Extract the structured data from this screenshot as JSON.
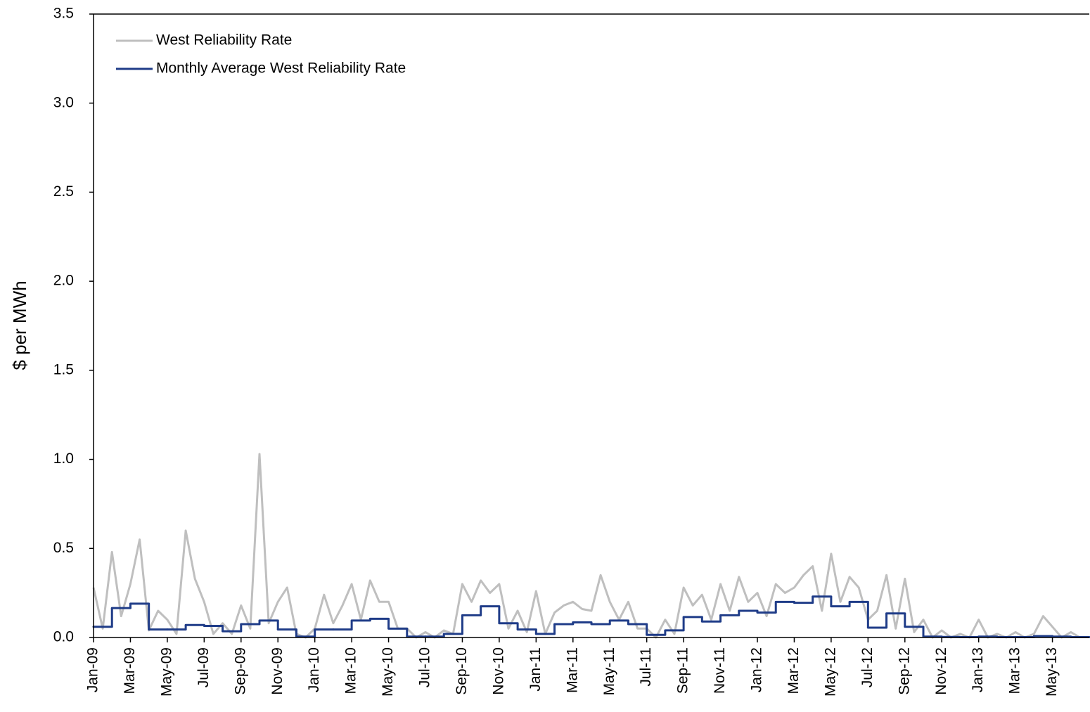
{
  "chart_data": {
    "type": "line",
    "y_label": "$ per MWh",
    "xlim": [
      0,
      54
    ],
    "ylim": [
      0,
      3.5
    ],
    "yticks": [
      {
        "value": 0,
        "label": "0.0"
      },
      0.5,
      {
        "value": 1,
        "label": "1.0"
      },
      1.5,
      {
        "value": 2,
        "label": "2.0"
      },
      2.5,
      {
        "value": 3,
        "label": "3.0"
      },
      3.5
    ],
    "xticks": [
      {
        "value": 0,
        "label": "Jan-09"
      },
      {
        "value": 2,
        "label": "Mar-09"
      },
      {
        "value": 4,
        "label": "May-09"
      },
      {
        "value": 6,
        "label": "Jul-09"
      },
      {
        "value": 8,
        "label": "Sep-09"
      },
      {
        "value": 10,
        "label": "Nov-09"
      },
      {
        "value": 12,
        "label": "Jan-10"
      },
      {
        "value": 14,
        "label": "Mar-10"
      },
      {
        "value": 16,
        "label": "May-10"
      },
      {
        "value": 18,
        "label": "Jul-10"
      },
      {
        "value": 20,
        "label": "Sep-10"
      },
      {
        "value": 22,
        "label": "Nov-10"
      },
      {
        "value": 24,
        "label": "Jan-11"
      },
      {
        "value": 26,
        "label": "Mar-11"
      },
      {
        "value": 28,
        "label": "May-11"
      },
      {
        "value": 30,
        "label": "Jul-11"
      },
      {
        "value": 32,
        "label": "Sep-11"
      },
      {
        "value": 34,
        "label": "Nov-11"
      },
      {
        "value": 36,
        "label": "Jan-12"
      },
      {
        "value": 38,
        "label": "Mar-12"
      },
      {
        "value": 40,
        "label": "May-12"
      },
      {
        "value": 42,
        "label": "Jul-12"
      },
      {
        "value": 44,
        "label": "Sep-12"
      },
      {
        "value": 46,
        "label": "Nov-12"
      },
      {
        "value": 48,
        "label": "Jan-13"
      },
      {
        "value": 50,
        "label": "Mar-13"
      },
      {
        "value": 52,
        "label": "May-13"
      }
    ],
    "legend": "upper left",
    "series": [
      {
        "name": "West Reliability Rate",
        "color": "#bfbfbf",
        "step": false,
        "x": [
          0,
          0.5,
          1,
          1.5,
          2,
          2.5,
          3,
          3.5,
          4,
          4.5,
          5,
          5.5,
          6,
          6.5,
          7,
          7.5,
          8,
          8.5,
          9,
          9.5,
          10,
          10.5,
          11,
          11.5,
          12,
          12.5,
          13,
          13.5,
          14,
          14.5,
          15,
          15.5,
          16,
          16.5,
          17,
          17.5,
          18,
          18.5,
          19,
          19.5,
          20,
          20.5,
          21,
          21.5,
          22,
          22.5,
          23,
          23.5,
          24,
          24.5,
          25,
          25.5,
          26,
          26.5,
          27,
          27.5,
          28,
          28.5,
          29,
          29.5,
          30,
          30.5,
          31,
          31.5,
          32,
          32.5,
          33,
          33.5,
          34,
          34.5,
          35,
          35.5,
          36,
          36.5,
          37,
          37.5,
          38,
          38.5,
          39,
          39.5,
          40,
          40.5,
          41,
          41.5,
          42,
          42.5,
          43,
          43.5,
          44,
          44.5,
          45,
          45.5,
          46,
          46.5,
          47,
          47.5,
          48,
          48.5,
          49,
          49.5,
          50,
          50.5,
          51,
          51.5,
          52,
          52.5,
          53,
          53.5
        ],
        "values": [
          0.28,
          0.05,
          0.48,
          0.12,
          0.3,
          0.55,
          0.04,
          0.15,
          0.1,
          0.02,
          0.6,
          0.33,
          0.2,
          0.02,
          0.08,
          0.02,
          0.18,
          0.05,
          1.03,
          0.08,
          0.2,
          0.28,
          0.02,
          0,
          0.05,
          0.24,
          0.08,
          0.18,
          0.3,
          0.1,
          0.32,
          0.2,
          0.2,
          0.05,
          0.05,
          0,
          0.03,
          0,
          0.04,
          0.02,
          0.3,
          0.2,
          0.32,
          0.25,
          0.3,
          0.05,
          0.15,
          0.03,
          0.26,
          0.02,
          0.14,
          0.18,
          0.2,
          0.16,
          0.15,
          0.35,
          0.2,
          0.1,
          0.2,
          0.05,
          0.05,
          0,
          0.1,
          0.02,
          0.28,
          0.18,
          0.24,
          0.1,
          0.3,
          0.15,
          0.34,
          0.2,
          0.25,
          0.12,
          0.3,
          0.25,
          0.28,
          0.35,
          0.4,
          0.15,
          0.47,
          0.2,
          0.34,
          0.28,
          0.1,
          0.15,
          0.35,
          0.05,
          0.33,
          0.03,
          0.1,
          0,
          0.04,
          0,
          0.02,
          0,
          0.1,
          0,
          0.02,
          0,
          0.03,
          0,
          0.02,
          0.12,
          0.06,
          0,
          0.03,
          0
        ]
      },
      {
        "name": "Monthly Average West Reliability Rate",
        "color": "#1f3c88",
        "step": true,
        "x": [
          0,
          1,
          2,
          3,
          4,
          5,
          6,
          7,
          8,
          9,
          10,
          11,
          12,
          13,
          14,
          15,
          16,
          17,
          18,
          19,
          20,
          21,
          22,
          23,
          24,
          25,
          26,
          27,
          28,
          29,
          30,
          31,
          32,
          33,
          34,
          35,
          36,
          37,
          38,
          39,
          40,
          41,
          42,
          43,
          44,
          45,
          46,
          47,
          48,
          49,
          50,
          51,
          52,
          53
        ],
        "values": [
          0.06,
          0.165,
          0.19,
          0.045,
          0.045,
          0.07,
          0.065,
          0.035,
          0.075,
          0.095,
          0.045,
          0.005,
          0.045,
          0.045,
          0.095,
          0.105,
          0.05,
          0.005,
          0.005,
          0.02,
          0.125,
          0.175,
          0.08,
          0.045,
          0.02,
          0.075,
          0.085,
          0.075,
          0.095,
          0.075,
          0.015,
          0.04,
          0.115,
          0.09,
          0.125,
          0.15,
          0.14,
          0.2,
          0.195,
          0.23,
          0.175,
          0.2,
          0.055,
          0.135,
          0.06,
          0.005,
          0.003,
          0.002,
          0.005,
          0.002,
          0.002,
          0.008,
          0.005,
          0.002
        ]
      }
    ]
  }
}
